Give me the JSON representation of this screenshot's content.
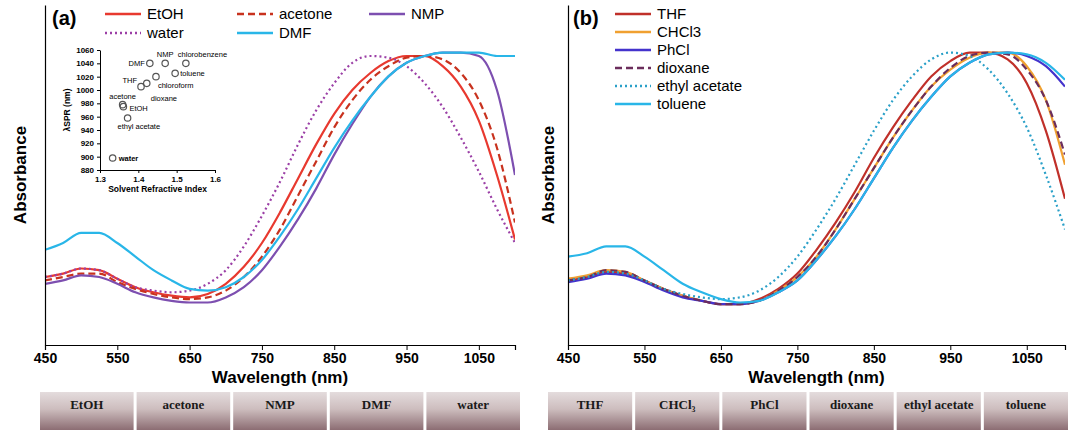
{
  "chart_data": [
    {
      "type": "line",
      "title": "(a)",
      "xlabel": "Wavelength (nm)",
      "ylabel": "Absorbance",
      "xlim": [
        450,
        1100
      ],
      "xticks": [
        450,
        550,
        650,
        750,
        850,
        950,
        1050
      ],
      "ylim": [
        0,
        1
      ],
      "tick_labels": "x",
      "legend": "top-left",
      "x": [
        450,
        475,
        500,
        525,
        550,
        575,
        600,
        625,
        650,
        675,
        700,
        725,
        750,
        775,
        800,
        825,
        850,
        875,
        900,
        925,
        950,
        975,
        1000,
        1025,
        1050,
        1075,
        1100
      ],
      "series": [
        {
          "name": "EtOH",
          "color": "#e8392f",
          "line_style": "solid",
          "values": [
            0.2,
            0.21,
            0.225,
            0.22,
            0.195,
            0.17,
            0.155,
            0.145,
            0.14,
            0.15,
            0.18,
            0.23,
            0.3,
            0.39,
            0.49,
            0.59,
            0.68,
            0.75,
            0.8,
            0.835,
            0.85,
            0.85,
            0.82,
            0.76,
            0.66,
            0.5,
            0.31
          ]
        },
        {
          "name": "acetone",
          "color": "#c8321e",
          "line_style": "dashed",
          "values": [
            0.19,
            0.2,
            0.21,
            0.21,
            0.185,
            0.165,
            0.15,
            0.14,
            0.135,
            0.14,
            0.16,
            0.2,
            0.26,
            0.34,
            0.44,
            0.54,
            0.64,
            0.72,
            0.78,
            0.82,
            0.845,
            0.85,
            0.84,
            0.8,
            0.72,
            0.58,
            0.36
          ]
        },
        {
          "name": "NMP",
          "color": "#7d4fb0",
          "line_style": "solid",
          "values": [
            0.18,
            0.19,
            0.205,
            0.2,
            0.18,
            0.155,
            0.14,
            0.13,
            0.125,
            0.125,
            0.14,
            0.17,
            0.22,
            0.29,
            0.37,
            0.46,
            0.56,
            0.65,
            0.73,
            0.79,
            0.83,
            0.85,
            0.86,
            0.86,
            0.85,
            0.75,
            0.5
          ]
        },
        {
          "name": "water",
          "color": "#9b3fa6",
          "line_style": "dotted",
          "values": [
            0.2,
            0.21,
            0.225,
            0.22,
            0.195,
            0.17,
            0.16,
            0.155,
            0.16,
            0.18,
            0.22,
            0.29,
            0.38,
            0.48,
            0.59,
            0.69,
            0.77,
            0.83,
            0.85,
            0.845,
            0.82,
            0.77,
            0.7,
            0.61,
            0.51,
            0.4,
            0.3
          ]
        },
        {
          "name": "DMF",
          "color": "#29b6e8",
          "line_style": "solid",
          "values": [
            0.28,
            0.3,
            0.33,
            0.33,
            0.3,
            0.26,
            0.22,
            0.19,
            0.165,
            0.16,
            0.17,
            0.2,
            0.25,
            0.32,
            0.4,
            0.49,
            0.58,
            0.66,
            0.73,
            0.79,
            0.83,
            0.85,
            0.86,
            0.86,
            0.86,
            0.85,
            0.85
          ]
        }
      ]
    },
    {
      "type": "scatter",
      "xlabel": "Solvent Refractive Index",
      "ylabel": "λSPR (nm)",
      "xlim": [
        1.3,
        1.6
      ],
      "xticks": [
        1.3,
        1.4,
        1.5,
        1.6
      ],
      "ylim": [
        880,
        1060
      ],
      "yticks": [
        880,
        900,
        920,
        940,
        960,
        980,
        1000,
        1020,
        1040,
        1060
      ],
      "series": [
        {
          "color": "#555555",
          "marker": "circle",
          "x": [
            1.333,
            1.372,
            1.361,
            1.359,
            1.407,
            1.422,
            1.43,
            1.446,
            1.47,
            1.496,
            1.524
          ],
          "values": [
            898,
            958,
            975,
            978,
            1005,
            1010,
            1040,
            1020,
            1040,
            1025,
            1040
          ],
          "labels": [
            "water",
            "ethyl acetate",
            "EtOH",
            "acetone",
            "THF",
            "dioxane",
            "DMF",
            "chloroform",
            "NMP",
            "toluene",
            "chlorobenzene"
          ]
        }
      ]
    },
    {
      "type": "line",
      "title": "(b)",
      "xlabel": "Wavelength (nm)",
      "ylabel": "Absorbance",
      "xlim": [
        450,
        1100
      ],
      "xticks": [
        450,
        550,
        650,
        750,
        850,
        950,
        1050
      ],
      "ylim": [
        0,
        1
      ],
      "tick_labels": "x",
      "legend": "top-left",
      "x": [
        450,
        475,
        500,
        525,
        550,
        575,
        600,
        625,
        650,
        675,
        700,
        725,
        750,
        775,
        800,
        825,
        850,
        875,
        900,
        925,
        950,
        975,
        1000,
        1025,
        1050,
        1075,
        1100
      ],
      "series": [
        {
          "name": "THF",
          "color": "#c0302a",
          "line_style": "solid",
          "values": [
            0.19,
            0.2,
            0.215,
            0.21,
            0.19,
            0.165,
            0.145,
            0.13,
            0.12,
            0.12,
            0.135,
            0.165,
            0.21,
            0.28,
            0.36,
            0.45,
            0.55,
            0.64,
            0.72,
            0.79,
            0.835,
            0.86,
            0.86,
            0.84,
            0.77,
            0.63,
            0.43
          ]
        },
        {
          "name": "CHCl3",
          "color": "#f0a030",
          "line_style": "solid",
          "values": [
            0.195,
            0.205,
            0.22,
            0.215,
            0.19,
            0.165,
            0.145,
            0.13,
            0.12,
            0.12,
            0.13,
            0.16,
            0.2,
            0.26,
            0.34,
            0.43,
            0.52,
            0.61,
            0.69,
            0.76,
            0.81,
            0.845,
            0.86,
            0.86,
            0.82,
            0.72,
            0.53
          ]
        },
        {
          "name": "PhCl",
          "color": "#4433cc",
          "line_style": "solid",
          "values": [
            0.185,
            0.195,
            0.21,
            0.205,
            0.185,
            0.16,
            0.14,
            0.13,
            0.12,
            0.12,
            0.13,
            0.155,
            0.19,
            0.25,
            0.32,
            0.4,
            0.49,
            0.58,
            0.66,
            0.73,
            0.79,
            0.83,
            0.855,
            0.86,
            0.85,
            0.82,
            0.76
          ]
        },
        {
          "name": "dioxane",
          "color": "#6b2d5c",
          "line_style": "dashed",
          "values": [
            0.19,
            0.2,
            0.22,
            0.215,
            0.19,
            0.165,
            0.145,
            0.13,
            0.12,
            0.12,
            0.13,
            0.16,
            0.2,
            0.26,
            0.34,
            0.43,
            0.52,
            0.61,
            0.69,
            0.76,
            0.815,
            0.85,
            0.86,
            0.855,
            0.81,
            0.72,
            0.56
          ]
        },
        {
          "name": "ethyl acetate",
          "color": "#2aa0c8",
          "line_style": "dotted",
          "values": [
            0.19,
            0.2,
            0.215,
            0.21,
            0.19,
            0.165,
            0.15,
            0.14,
            0.135,
            0.14,
            0.16,
            0.2,
            0.26,
            0.34,
            0.43,
            0.53,
            0.63,
            0.72,
            0.79,
            0.84,
            0.86,
            0.85,
            0.81,
            0.74,
            0.64,
            0.5,
            0.34
          ]
        },
        {
          "name": "toluene",
          "color": "#29b6e8",
          "line_style": "solid",
          "values": [
            0.26,
            0.27,
            0.29,
            0.29,
            0.26,
            0.22,
            0.18,
            0.155,
            0.135,
            0.125,
            0.13,
            0.155,
            0.19,
            0.25,
            0.32,
            0.4,
            0.49,
            0.58,
            0.66,
            0.73,
            0.79,
            0.83,
            0.855,
            0.86,
            0.855,
            0.83,
            0.78
          ]
        }
      ]
    }
  ],
  "photos": [
    {
      "labels": [
        "EtOH",
        "acetone",
        "NMP",
        "DMF",
        "water"
      ]
    },
    {
      "labels": [
        "THF",
        "CHCl₃",
        "PhCl",
        "dioxane",
        "ethyl acetate",
        "toluene"
      ]
    }
  ]
}
